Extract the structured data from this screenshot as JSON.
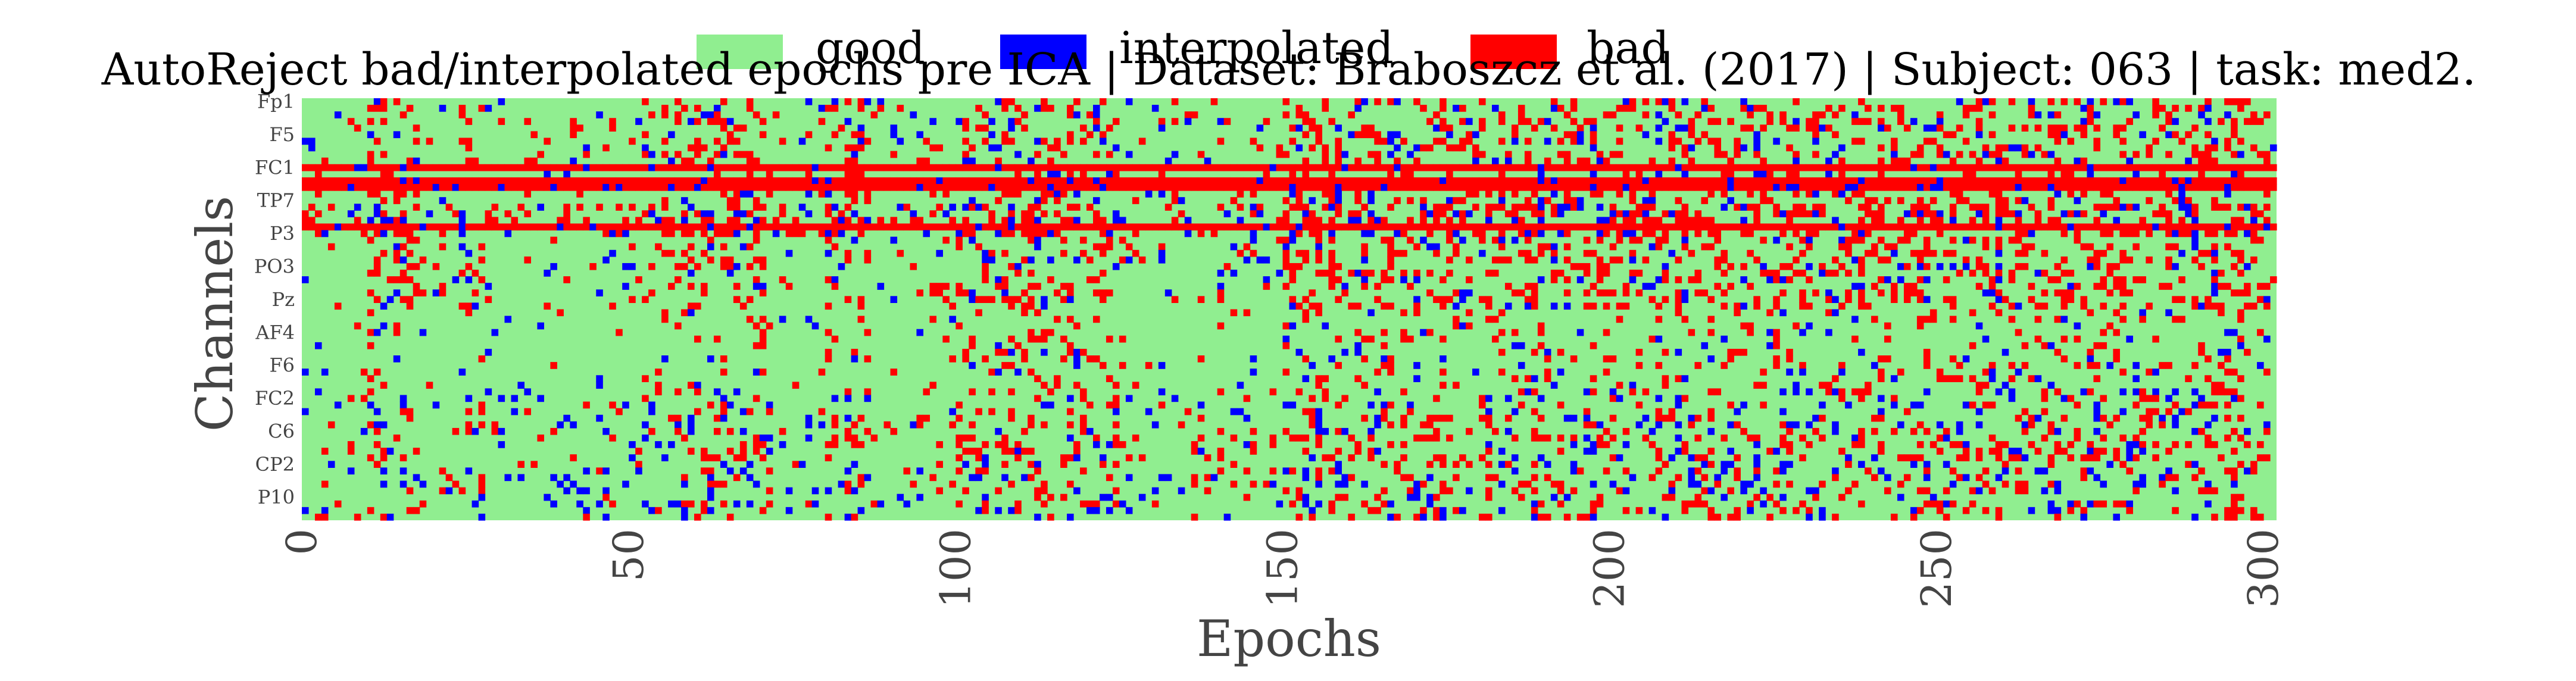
{
  "chart_data": {
    "type": "heatmap",
    "title": "AutoReject bad/interpolated epochs pre ICA | Dataset: Braboszcz et al. (2017) | Subject: 063 | task: med2.",
    "xlabel": "Epochs",
    "ylabel": "Channels",
    "xlim": [
      0,
      302
    ],
    "x_ticks": [
      "0",
      "50",
      "100",
      "150",
      "200",
      "250",
      "300"
    ],
    "y_ticks": [
      "Fp1",
      "F5",
      "FC1",
      "TP7",
      "P3",
      "PO3",
      "Pz",
      "AF4",
      "F6",
      "FC2",
      "C6",
      "CP2",
      "P10"
    ],
    "n_epochs": 302,
    "n_channels": 64,
    "legend": [
      {
        "label": "good",
        "color": "#90ee90"
      },
      {
        "label": "interpolated",
        "color": "#0000ff"
      },
      {
        "label": "bad",
        "color": "#ff0000"
      }
    ],
    "legend_position": "top-center",
    "grid": false,
    "full_bad_channels": [
      10,
      12,
      13,
      19
    ],
    "dense_bad_epochs": [
      10,
      11,
      12,
      14,
      15,
      16,
      17,
      25,
      26,
      27,
      55,
      56,
      57,
      58,
      59,
      60,
      61,
      62,
      63,
      64,
      65,
      66,
      67,
      68,
      69,
      70,
      71,
      80,
      81,
      83,
      84,
      85,
      86,
      100,
      101,
      102,
      103,
      104,
      105,
      106,
      107,
      108,
      109,
      110,
      111,
      112,
      113,
      114,
      115,
      116,
      117,
      118,
      119,
      120,
      121,
      122,
      123,
      124,
      140,
      145,
      150,
      151,
      152,
      153,
      154,
      155,
      156,
      157,
      158,
      159,
      160,
      161,
      162,
      163,
      164,
      165,
      166,
      167,
      168,
      169,
      170,
      171,
      172,
      173,
      174,
      175,
      176,
      177,
      178,
      179,
      180,
      181,
      182,
      183,
      184,
      185,
      186,
      187,
      188,
      189,
      190,
      191,
      192,
      193,
      194,
      195,
      196,
      197,
      198,
      199,
      200,
      201,
      202,
      203,
      204,
      205,
      206,
      207,
      208,
      209,
      210,
      211,
      212,
      213,
      214,
      215,
      216,
      217,
      218,
      219,
      220,
      221,
      222,
      223,
      224,
      225,
      226,
      227,
      228,
      229,
      230,
      231,
      232,
      233,
      234,
      235,
      236,
      237,
      238,
      239,
      240,
      241,
      242,
      243,
      244,
      245,
      246,
      247,
      248,
      249,
      250,
      251,
      252,
      253,
      254,
      255,
      256,
      257,
      258,
      259,
      260,
      261,
      262,
      263,
      264,
      265,
      266,
      267,
      268,
      269,
      270,
      271,
      272,
      273,
      274,
      275,
      276,
      277,
      278,
      279,
      280,
      281,
      282,
      283,
      284,
      285,
      286,
      287,
      288,
      289,
      290,
      291,
      292,
      293,
      294,
      295,
      296,
      297,
      298,
      299,
      300
    ]
  }
}
